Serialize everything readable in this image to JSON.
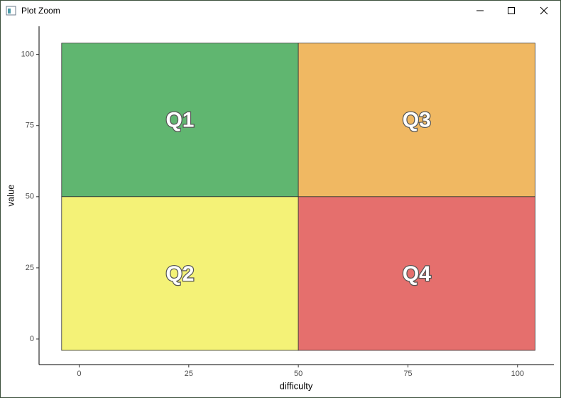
{
  "window": {
    "title": "Plot Zoom"
  },
  "chart_data": {
    "type": "rect",
    "xlabel": "difficulty",
    "ylabel": "value",
    "xlim": [
      -9.15,
      108.3
    ],
    "ylim": [
      -9,
      109.9
    ],
    "xticks": [
      0,
      25,
      50,
      75,
      100
    ],
    "yticks": [
      0,
      25,
      50,
      75,
      100
    ],
    "rects": [
      {
        "label": "Q1",
        "xmin": -4,
        "xmax": 50,
        "ymin": 50,
        "ymax": 104,
        "color": "#60b670"
      },
      {
        "label": "Q2",
        "xmin": -4,
        "xmax": 50,
        "ymin": -4,
        "ymax": 50,
        "color": "#f4f277"
      },
      {
        "label": "Q3",
        "xmin": 50,
        "xmax": 104,
        "ymin": 50,
        "ymax": 104,
        "color": "#f0b862"
      },
      {
        "label": "Q4",
        "xmin": 50,
        "xmax": 104,
        "ymin": -4,
        "ymax": 50,
        "color": "#e56f6d"
      }
    ]
  }
}
